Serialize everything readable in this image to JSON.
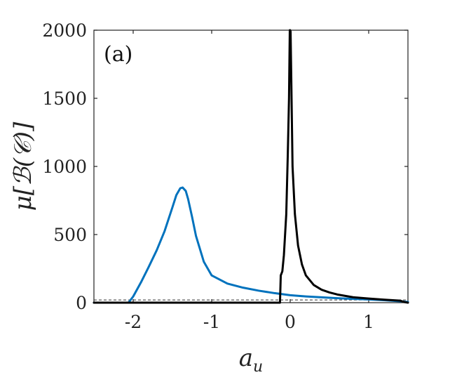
{
  "chart_data": {
    "type": "line",
    "panel_label": "(a)",
    "xlabel": "a_u",
    "ylabel": "μ[ℬ(𝒞)]",
    "xlim": [
      -2.5,
      1.5
    ],
    "ylim": [
      0,
      2000
    ],
    "xticks": [
      -2,
      -1,
      0,
      1
    ],
    "xtick_labels": [
      "-2",
      "-1",
      "0",
      "1"
    ],
    "yticks": [
      0,
      500,
      1000,
      1500,
      2000
    ],
    "ytick_labels": [
      "0",
      "500",
      "1000",
      "1500",
      "2000"
    ],
    "grid": false,
    "reference_line": {
      "y": 20,
      "style": "dashed",
      "color": "#333333"
    },
    "series": [
      {
        "color": "#0072bd",
        "x": [
          -2.5,
          -2.06,
          -2.0,
          -1.9,
          -1.8,
          -1.7,
          -1.6,
          -1.5,
          -1.45,
          -1.4,
          -1.37,
          -1.33,
          -1.3,
          -1.25,
          -1.2,
          -1.1,
          -1.0,
          -0.8,
          -0.6,
          -0.4,
          -0.2,
          0.0,
          0.2,
          0.4,
          0.6,
          0.8,
          1.0,
          1.2,
          1.4,
          1.5
        ],
        "y": [
          0,
          0,
          45,
          150,
          265,
          385,
          525,
          700,
          790,
          840,
          845,
          820,
          760,
          630,
          490,
          300,
          200,
          140,
          110,
          88,
          70,
          55,
          46,
          39,
          33,
          28,
          24,
          18,
          10,
          5
        ]
      },
      {
        "color": "#000000",
        "x": [
          -2.5,
          -0.13,
          -0.12,
          -0.1,
          -0.08,
          -0.05,
          -0.03,
          -0.015,
          -0.005,
          0.0,
          0.005,
          0.015,
          0.03,
          0.06,
          0.1,
          0.15,
          0.2,
          0.3,
          0.4,
          0.5,
          0.6,
          0.8,
          1.0,
          1.2,
          1.4,
          1.45,
          1.5
        ],
        "y": [
          0,
          0,
          200,
          230,
          350,
          650,
          1100,
          1500,
          2000,
          2000,
          1990,
          1600,
          1000,
          650,
          420,
          280,
          200,
          130,
          95,
          75,
          60,
          40,
          30,
          22,
          15,
          5,
          0
        ]
      }
    ]
  }
}
